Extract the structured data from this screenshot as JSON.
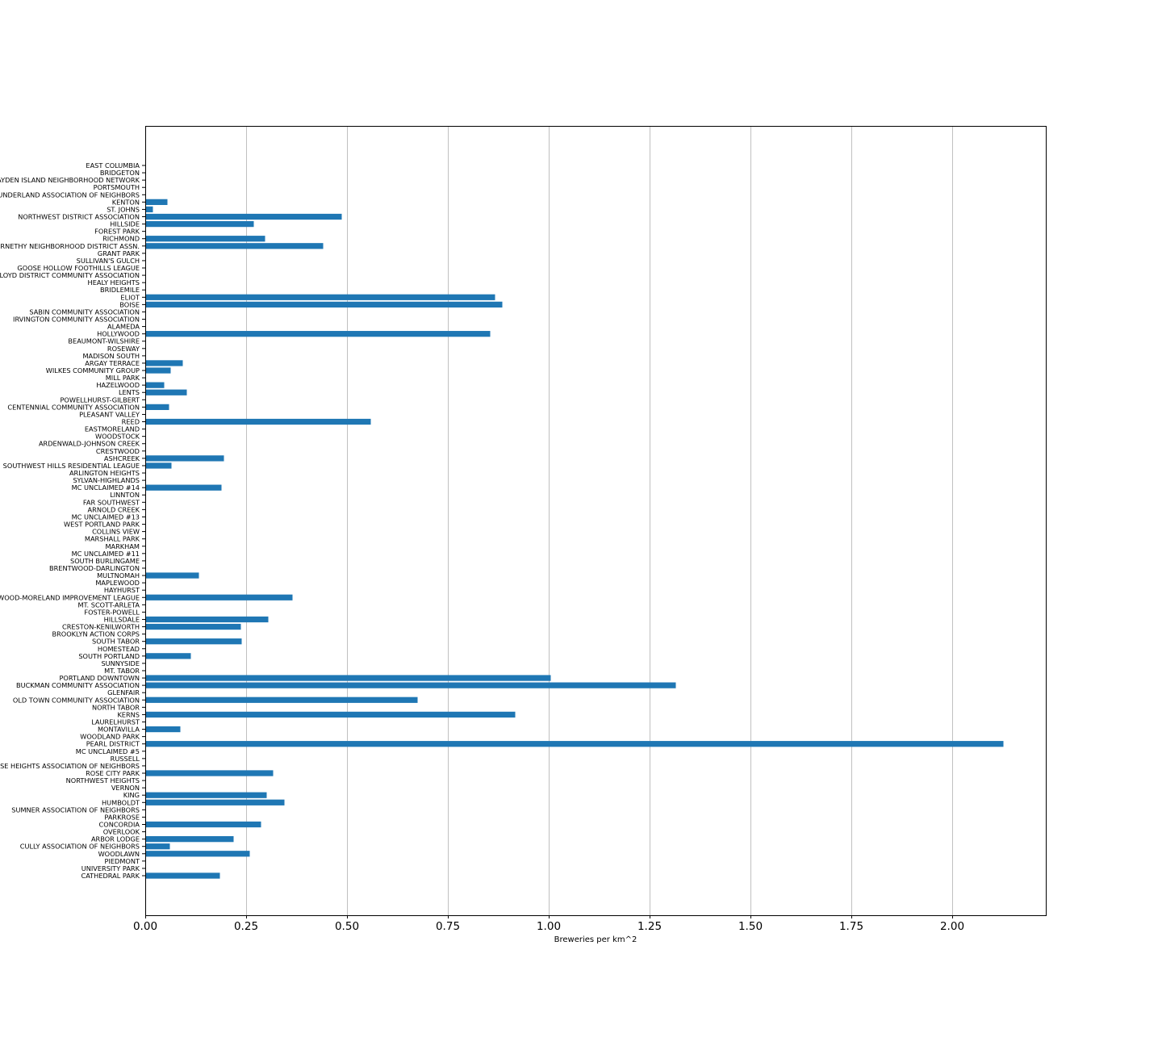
{
  "chart_data": {
    "type": "bar",
    "orientation": "horizontal",
    "title": "",
    "xlabel": "Breweries per km^2",
    "ylabel": "",
    "xlim": [
      0,
      2.232
    ],
    "xticks": [
      0.0,
      0.25,
      0.5,
      0.75,
      1.0,
      1.25,
      1.5,
      1.75,
      2.0
    ],
    "xtick_labels": [
      "0.00",
      "0.25",
      "0.50",
      "0.75",
      "1.00",
      "1.25",
      "1.50",
      "1.75",
      "2.00"
    ],
    "grid": "vertical",
    "bar_color": "#1f77b4",
    "categories": [
      "CATHEDRAL PARK",
      "UNIVERSITY PARK",
      "PIEDMONT",
      "WOODLAWN",
      "CULLY ASSOCIATION OF NEIGHBORS",
      "ARBOR LODGE",
      "OVERLOOK",
      "CONCORDIA",
      "PARKROSE",
      "SUMNER ASSOCIATION OF NEIGHBORS",
      "HUMBOLDT",
      "KING",
      "VERNON",
      "NORTHWEST HEIGHTS",
      "ROSE CITY PARK",
      "ROSE HEIGHTS ASSOCIATION OF NEIGHBORS",
      "RUSSELL",
      "MC UNCLAIMED #5",
      "PEARL DISTRICT",
      "WOODLAND PARK",
      "MONTAVILLA",
      "LAURELHURST",
      "KERNS",
      "NORTH TABOR",
      "OLD TOWN COMMUNITY ASSOCIATION",
      "GLENFAIR",
      "BUCKMAN COMMUNITY ASSOCIATION",
      "PORTLAND DOWNTOWN",
      "MT. TABOR",
      "SUNNYSIDE",
      "SOUTH PORTLAND",
      "HOMESTEAD",
      "SOUTH TABOR",
      "BROOKLYN ACTION CORPS",
      "CRESTON-KENILWORTH",
      "HILLSDALE",
      "FOSTER-POWELL",
      "MT. SCOTT-ARLETA",
      "SELLWOOD-MORELAND IMPROVEMENT LEAGUE",
      "HAYHURST",
      "MAPLEWOOD",
      "MULTNOMAH",
      "BRENTWOOD-DARLINGTON",
      "SOUTH BURLINGAME",
      "MC UNCLAIMED #11",
      "MARKHAM",
      "MARSHALL PARK",
      "COLLINS VIEW",
      "WEST PORTLAND PARK",
      "MC UNCLAIMED #13",
      "ARNOLD CREEK",
      "FAR SOUTHWEST",
      "LINNTON",
      "MC UNCLAIMED #14",
      "SYLVAN-HIGHLANDS",
      "ARLINGTON HEIGHTS",
      "SOUTHWEST HILLS RESIDENTIAL LEAGUE",
      "ASHCREEK",
      "CRESTWOOD",
      "ARDENWALD-JOHNSON CREEK",
      "WOODSTOCK",
      "EASTMORELAND",
      "REED",
      "PLEASANT VALLEY",
      "CENTENNIAL COMMUNITY ASSOCIATION",
      "POWELLHURST-GILBERT",
      "LENTS",
      "HAZELWOOD",
      "MILL PARK",
      "WILKES COMMUNITY GROUP",
      "ARGAY TERRACE",
      "MADISON SOUTH",
      "ROSEWAY",
      "BEAUMONT-WILSHIRE",
      "HOLLYWOOD",
      "ALAMEDA",
      "IRVINGTON COMMUNITY ASSOCIATION",
      "SABIN COMMUNITY ASSOCIATION",
      "BOISE",
      "ELIOT",
      "BRIDLEMILE",
      "HEALY HEIGHTS",
      "LLOYD DISTRICT COMMUNITY ASSOCIATION",
      "GOOSE HOLLOW FOOTHILLS LEAGUE",
      "SULLIVAN'S GULCH",
      "GRANT PARK",
      "ABERNETHY NEIGHBORHOOD DISTRICT ASSN.",
      "RICHMOND",
      "FOREST PARK",
      "HILLSIDE",
      "NORTHWEST DISTRICT ASSOCIATION",
      "ST. JOHNS",
      "KENTON",
      "SUNDERLAND ASSOCIATION OF NEIGHBORS",
      "PORTSMOUTH",
      "HAYDEN ISLAND NEIGHBORHOOD NETWORK",
      "BRIDGETON",
      "EAST COLUMBIA"
    ],
    "values": [
      0.184,
      0,
      0,
      0.258,
      0.06,
      0.218,
      0,
      0.286,
      0,
      0,
      0.344,
      0.3,
      0,
      0,
      0.316,
      0,
      0,
      0,
      2.126,
      0,
      0.086,
      0,
      0.916,
      0,
      0.674,
      0,
      1.314,
      1.004,
      0,
      0,
      0.112,
      0,
      0.238,
      0,
      0.236,
      0.304,
      0,
      0,
      0.364,
      0,
      0,
      0.132,
      0,
      0,
      0,
      0,
      0,
      0,
      0,
      0,
      0,
      0,
      0,
      0.188,
      0,
      0,
      0.064,
      0.194,
      0,
      0,
      0,
      0,
      0.558,
      0,
      0.058,
      0,
      0.102,
      0.046,
      0,
      0.062,
      0.092,
      0,
      0,
      0,
      0.854,
      0,
      0,
      0,
      0.884,
      0.866,
      0,
      0,
      0,
      0,
      0,
      0,
      0.44,
      0.296,
      0,
      0.268,
      0.486,
      0.018,
      0.054,
      0,
      0,
      0,
      0,
      0
    ]
  }
}
